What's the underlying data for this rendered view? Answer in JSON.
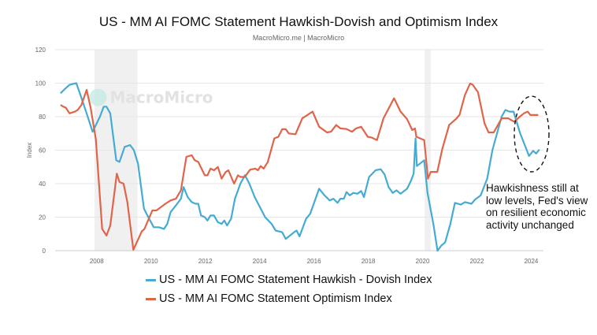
{
  "chart_data": {
    "type": "line",
    "title": "US - MM AI FOMC Statement Hawkish-Dovish and Optimism Index",
    "subtitle": "MacroMicro.me | MacroMicro",
    "ylabel": "Index",
    "xlabel": "",
    "ylim": [
      0,
      120
    ],
    "yticks": [
      "0",
      "20",
      "40",
      "60",
      "80",
      "100",
      "120"
    ],
    "xlim": [
      2006.47,
      2024.45
    ],
    "xticks": [
      "2008",
      "2010",
      "2012",
      "2014",
      "2016",
      "2018",
      "2020",
      "2022",
      "2024"
    ],
    "grid": true,
    "legend_position": "bottom",
    "watermark": "MacroMicro",
    "shaded_periods": [
      [
        2007.92,
        2009.5
      ],
      [
        2020.08,
        2020.3
      ]
    ],
    "annotation": "Hawkishness still at low levels, Fed's view on resilient economic activity unchanged",
    "series": [
      {
        "name": "US - MM AI FOMC Statement Hawkish - Dovish Index",
        "color": "#45abd3",
        "points": [
          [
            2006.67,
            94
          ],
          [
            2006.86,
            97
          ],
          [
            2007.0,
            99
          ],
          [
            2007.25,
            100
          ],
          [
            2007.4,
            93
          ],
          [
            2007.63,
            82
          ],
          [
            2007.85,
            71
          ],
          [
            2008.12,
            80
          ],
          [
            2008.26,
            86
          ],
          [
            2008.36,
            86
          ],
          [
            2008.5,
            82
          ],
          [
            2008.72,
            54
          ],
          [
            2008.84,
            53
          ],
          [
            2009.03,
            62
          ],
          [
            2009.23,
            63
          ],
          [
            2009.37,
            60
          ],
          [
            2009.52,
            52
          ],
          [
            2009.74,
            25
          ],
          [
            2009.9,
            20
          ],
          [
            2010.1,
            14
          ],
          [
            2010.29,
            14
          ],
          [
            2010.48,
            13
          ],
          [
            2010.6,
            16
          ],
          [
            2010.72,
            23
          ],
          [
            2010.92,
            27
          ],
          [
            2011.1,
            31
          ],
          [
            2011.2,
            38
          ],
          [
            2011.35,
            32
          ],
          [
            2011.5,
            29
          ],
          [
            2011.64,
            28
          ],
          [
            2011.74,
            28
          ],
          [
            2011.84,
            21
          ],
          [
            2011.98,
            20
          ],
          [
            2012.08,
            18
          ],
          [
            2012.19,
            21
          ],
          [
            2012.32,
            21
          ],
          [
            2012.46,
            17
          ],
          [
            2012.6,
            16
          ],
          [
            2012.7,
            18
          ],
          [
            2012.8,
            15
          ],
          [
            2012.95,
            19
          ],
          [
            2013.09,
            31
          ],
          [
            2013.29,
            40
          ],
          [
            2013.46,
            45
          ],
          [
            2013.62,
            40
          ],
          [
            2013.82,
            32
          ],
          [
            2014.01,
            26
          ],
          [
            2014.2,
            20
          ],
          [
            2014.44,
            16
          ],
          [
            2014.59,
            12
          ],
          [
            2014.83,
            11
          ],
          [
            2014.96,
            7
          ],
          [
            2015.27,
            11
          ],
          [
            2015.36,
            12
          ],
          [
            2015.47,
            8.5
          ],
          [
            2015.71,
            19
          ],
          [
            2015.86,
            22
          ],
          [
            2016.19,
            37
          ],
          [
            2016.39,
            33
          ],
          [
            2016.58,
            30
          ],
          [
            2016.72,
            31
          ],
          [
            2016.87,
            28.5
          ],
          [
            2016.97,
            31
          ],
          [
            2017.1,
            31
          ],
          [
            2017.2,
            35
          ],
          [
            2017.32,
            33
          ],
          [
            2017.45,
            34.5
          ],
          [
            2017.6,
            34
          ],
          [
            2017.74,
            35.6
          ],
          [
            2017.84,
            32
          ],
          [
            2018.03,
            44
          ],
          [
            2018.27,
            48
          ],
          [
            2018.46,
            48.6
          ],
          [
            2018.6,
            45.5
          ],
          [
            2018.75,
            38
          ],
          [
            2018.9,
            34.5
          ],
          [
            2019.04,
            36
          ],
          [
            2019.19,
            34
          ],
          [
            2019.43,
            37
          ],
          [
            2019.57,
            41.6
          ],
          [
            2019.67,
            46
          ],
          [
            2019.74,
            67
          ],
          [
            2019.79,
            50.5
          ],
          [
            2020.06,
            54
          ],
          [
            2020.18,
            34.5
          ],
          [
            2020.4,
            15.7
          ],
          [
            2020.55,
            0
          ],
          [
            2020.69,
            3
          ],
          [
            2020.83,
            5
          ],
          [
            2021.02,
            15.7
          ],
          [
            2021.19,
            28.5
          ],
          [
            2021.41,
            27.5
          ],
          [
            2021.56,
            29
          ],
          [
            2021.8,
            28
          ],
          [
            2021.94,
            30.6
          ],
          [
            2022.14,
            33
          ],
          [
            2022.38,
            43
          ],
          [
            2022.57,
            60
          ],
          [
            2022.91,
            80
          ],
          [
            2023.05,
            84
          ],
          [
            2023.2,
            83
          ],
          [
            2023.35,
            83
          ],
          [
            2023.58,
            70.6
          ],
          [
            2023.92,
            56.5
          ],
          [
            2024.07,
            59.6
          ],
          [
            2024.18,
            58
          ],
          [
            2024.3,
            60.4
          ]
        ]
      },
      {
        "name": "US - MM AI FOMC Statement Optimism Index",
        "color": "#e0644a",
        "points": [
          [
            2006.67,
            87
          ],
          [
            2006.77,
            86
          ],
          [
            2006.86,
            85.4
          ],
          [
            2007.0,
            82
          ],
          [
            2007.2,
            83
          ],
          [
            2007.3,
            84
          ],
          [
            2007.44,
            87
          ],
          [
            2007.63,
            96
          ],
          [
            2007.78,
            85
          ],
          [
            2007.97,
            66.5
          ],
          [
            2008.2,
            13
          ],
          [
            2008.36,
            9
          ],
          [
            2008.5,
            15
          ],
          [
            2008.74,
            46
          ],
          [
            2008.84,
            41
          ],
          [
            2008.99,
            40
          ],
          [
            2009.13,
            29
          ],
          [
            2009.35,
            0.5
          ],
          [
            2009.66,
            11.5
          ],
          [
            2009.76,
            13
          ],
          [
            2010.05,
            24
          ],
          [
            2010.2,
            24
          ],
          [
            2010.53,
            28
          ],
          [
            2010.72,
            30
          ],
          [
            2010.92,
            31
          ],
          [
            2011.1,
            36
          ],
          [
            2011.3,
            56
          ],
          [
            2011.5,
            57
          ],
          [
            2011.61,
            54
          ],
          [
            2011.74,
            53
          ],
          [
            2011.98,
            45
          ],
          [
            2012.08,
            45
          ],
          [
            2012.19,
            49
          ],
          [
            2012.32,
            48
          ],
          [
            2012.46,
            50
          ],
          [
            2012.6,
            43
          ],
          [
            2012.75,
            47
          ],
          [
            2012.85,
            48
          ],
          [
            2013.06,
            40
          ],
          [
            2013.2,
            45
          ],
          [
            2013.3,
            44
          ],
          [
            2013.45,
            44
          ],
          [
            2013.65,
            48.4
          ],
          [
            2013.84,
            49
          ],
          [
            2013.94,
            48
          ],
          [
            2014.04,
            50.5
          ],
          [
            2014.15,
            49
          ],
          [
            2014.3,
            53
          ],
          [
            2014.54,
            67
          ],
          [
            2014.69,
            68
          ],
          [
            2014.83,
            72.5
          ],
          [
            2014.96,
            72.5
          ],
          [
            2015.07,
            70
          ],
          [
            2015.32,
            69.5
          ],
          [
            2015.57,
            79
          ],
          [
            2015.76,
            81
          ],
          [
            2015.95,
            83
          ],
          [
            2016.19,
            74
          ],
          [
            2016.48,
            70.6
          ],
          [
            2016.63,
            71
          ],
          [
            2016.82,
            75
          ],
          [
            2016.97,
            73
          ],
          [
            2017.2,
            72.6
          ],
          [
            2017.4,
            71
          ],
          [
            2017.55,
            73
          ],
          [
            2017.74,
            74
          ],
          [
            2017.98,
            68
          ],
          [
            2018.12,
            67.6
          ],
          [
            2018.32,
            66
          ],
          [
            2018.56,
            79
          ],
          [
            2018.95,
            91
          ],
          [
            2019.19,
            83
          ],
          [
            2019.43,
            78.5
          ],
          [
            2019.62,
            72
          ],
          [
            2019.72,
            73
          ],
          [
            2019.77,
            68
          ],
          [
            2020.06,
            66
          ],
          [
            2020.2,
            43
          ],
          [
            2020.3,
            47
          ],
          [
            2020.54,
            47
          ],
          [
            2020.73,
            61
          ],
          [
            2020.98,
            75
          ],
          [
            2021.22,
            78.5
          ],
          [
            2021.36,
            81
          ],
          [
            2021.56,
            93
          ],
          [
            2021.75,
            99.8
          ],
          [
            2021.85,
            99
          ],
          [
            2022.04,
            94.6
          ],
          [
            2022.28,
            76
          ],
          [
            2022.43,
            70.6
          ],
          [
            2022.62,
            70.6
          ],
          [
            2022.91,
            79
          ],
          [
            2023.15,
            79
          ],
          [
            2023.37,
            77
          ],
          [
            2023.58,
            80
          ],
          [
            2023.73,
            82
          ],
          [
            2023.87,
            83
          ],
          [
            2023.97,
            81
          ],
          [
            2024.26,
            81
          ]
        ]
      }
    ]
  }
}
